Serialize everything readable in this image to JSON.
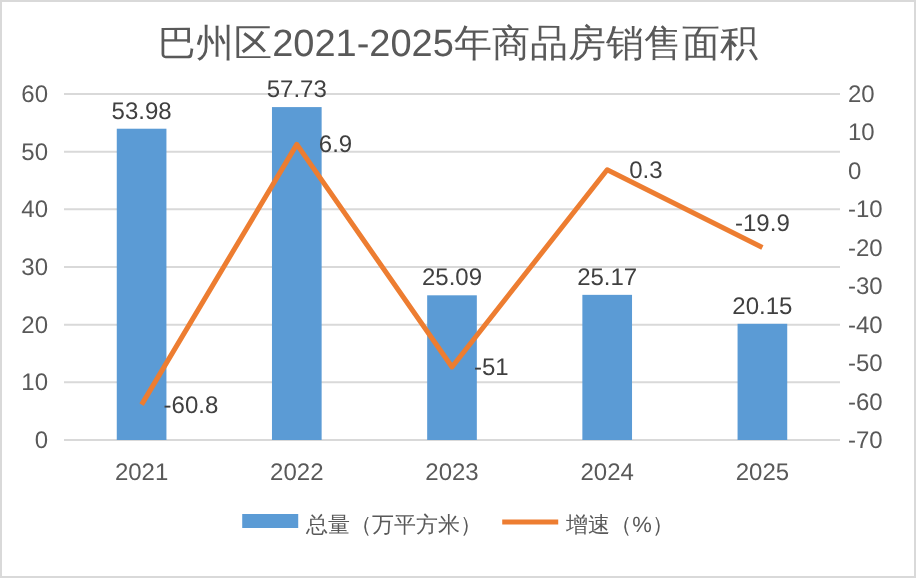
{
  "chart_data": {
    "type": "bar",
    "title": "巴州区2021-2025年商品房销售面积",
    "categories": [
      "2021",
      "2022",
      "2023",
      "2024",
      "2025"
    ],
    "series": [
      {
        "name": "总量（万平方米）",
        "color": "#5b9bd5",
        "values": [
          53.98,
          57.73,
          25.09,
          25.17,
          20.15
        ]
      },
      {
        "name": "增速（%）",
        "type": "line",
        "axis": "y2",
        "color": "#ed7d31",
        "values": [
          -60.8,
          6.9,
          -51,
          0.3,
          -19.9
        ]
      }
    ],
    "ylim": [
      0,
      60
    ],
    "yticks": [
      0,
      10,
      20,
      30,
      40,
      50,
      60
    ],
    "y2lim": [
      -70,
      20
    ],
    "y2ticks": [
      -70,
      -60,
      -50,
      -40,
      -30,
      -20,
      -10,
      0,
      10,
      20
    ],
    "grid": "y",
    "legend": "bottom",
    "data_labels": true
  }
}
